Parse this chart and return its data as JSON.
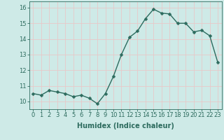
{
  "x": [
    0,
    1,
    2,
    3,
    4,
    5,
    6,
    7,
    8,
    9,
    10,
    11,
    12,
    13,
    14,
    15,
    16,
    17,
    18,
    19,
    20,
    21,
    22,
    23
  ],
  "y": [
    10.5,
    10.4,
    10.7,
    10.6,
    10.5,
    10.3,
    10.4,
    10.2,
    9.85,
    10.5,
    11.6,
    13.0,
    14.1,
    14.5,
    15.3,
    15.9,
    15.65,
    15.6,
    15.0,
    15.0,
    14.45,
    14.55,
    14.2,
    12.5
  ],
  "line_color": "#2d6b5e",
  "marker": "D",
  "marker_size": 2.5,
  "line_width": 1.0,
  "bg_color": "#ceeae7",
  "grid_color": "#e8c8c8",
  "xlabel": "Humidex (Indice chaleur)",
  "xlim": [
    -0.5,
    23.5
  ],
  "ylim": [
    9.5,
    16.4
  ],
  "yticks": [
    10,
    11,
    12,
    13,
    14,
    15,
    16
  ],
  "xticks": [
    0,
    1,
    2,
    3,
    4,
    5,
    6,
    7,
    8,
    9,
    10,
    11,
    12,
    13,
    14,
    15,
    16,
    17,
    18,
    19,
    20,
    21,
    22,
    23
  ],
  "tick_color": "#2d6b5e",
  "label_color": "#2d6b5e",
  "label_fontsize": 7,
  "tick_fontsize": 6
}
